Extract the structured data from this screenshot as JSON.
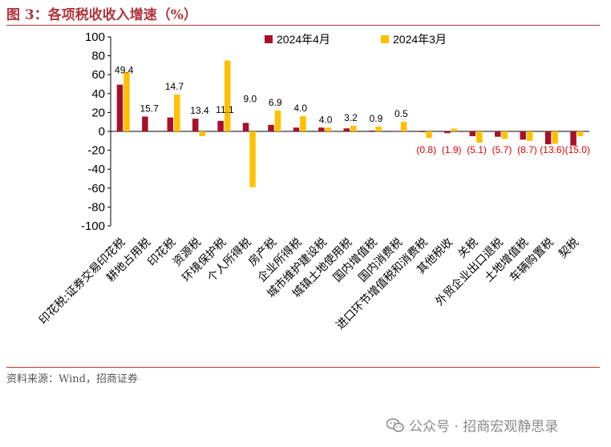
{
  "figure_title": "图 3：各项税收收入增速（%）",
  "source": "资料来源：Wind，招商证券",
  "watermark": "公众号 · 招商宏观静思录",
  "colors": {
    "series_1": "#a8102a",
    "series_2": "#ffc000",
    "negative_label": "#e00000",
    "accent": "#b0363c"
  },
  "chart_data": {
    "type": "bar",
    "title": "",
    "xlabel": "",
    "ylabel": "",
    "ylim": [
      -100,
      100
    ],
    "yticks": [
      -100,
      -80,
      -60,
      -40,
      -20,
      0,
      20,
      40,
      60,
      80,
      100
    ],
    "grid": false,
    "legend_position": "top",
    "categories": [
      "印花税:证券交易印花税",
      "耕地占用税",
      "印花税",
      "资源税",
      "环境保护税",
      "个人所得税",
      "房产税",
      "企业所得税",
      "城市维护建设税",
      "城镇土地使用税",
      "国内增值税",
      "国内消费税",
      "进口环节增值税和消费税",
      "其他税收",
      "关税",
      "外贸企业出口退税",
      "土地增值税",
      "车辆购置税",
      "契税"
    ],
    "series": [
      {
        "name": "2024年4月",
        "values": [
          49.4,
          15.7,
          14.7,
          13.4,
          11.1,
          9.0,
          6.9,
          4.0,
          4.0,
          3.2,
          0.9,
          0.5,
          -0.8,
          -1.9,
          -5.1,
          -5.7,
          -8.7,
          -13.6,
          -15.0
        ]
      },
      {
        "name": "2024年3月",
        "values": [
          63.0,
          0.0,
          39.0,
          -5.0,
          75.0,
          -59.0,
          22.0,
          16.0,
          4.0,
          6.0,
          5.0,
          10.0,
          -7.0,
          3.0,
          -12.0,
          -8.0,
          -10.0,
          -13.0,
          -5.0
        ]
      }
    ],
    "data_labels": [
      "49.4",
      "15.7",
      "14.7",
      "13.4",
      "11.1",
      "9.0",
      "6.9",
      "4.0",
      "4.0",
      "3.2",
      "0.9",
      "0.5",
      "(0.8)",
      "(1.9)",
      "(5.1)",
      "(5.7)",
      "(8.7)",
      "(13.6)",
      "(15.0)"
    ]
  }
}
